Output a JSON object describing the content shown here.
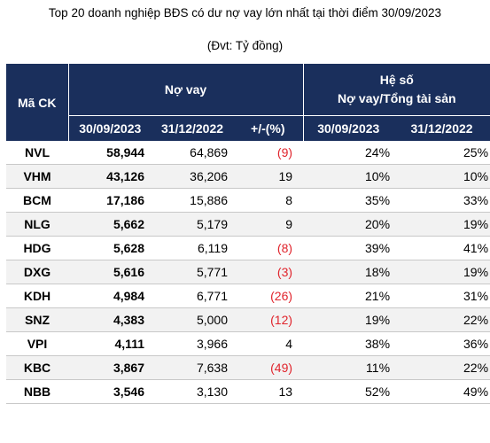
{
  "title": "Top 20 doanh nghiệp BĐS có dư nợ vay lớn nhất tại thời điểm 30/09/2023",
  "unit": "(Đvt: Tỷ đồng)",
  "table": {
    "header": {
      "code": "Mã CK",
      "loans": "Nợ vay",
      "ratio_line1": "Hệ số",
      "ratio_line2": "Nợ vay/Tổng tài sản",
      "loans_date1": "30/09/2023",
      "loans_date2": "31/12/2022",
      "change": "+/-(%)",
      "ratio_date1": "30/09/2023",
      "ratio_date2": "31/12/2022"
    },
    "rows": [
      {
        "code": "NVL",
        "loan_2023": "58,944",
        "loan_2022": "64,869",
        "change": "(9)",
        "ratio_2023": "24%",
        "ratio_2022": "25%"
      },
      {
        "code": "VHM",
        "loan_2023": "43,126",
        "loan_2022": "36,206",
        "change": "19",
        "ratio_2023": "10%",
        "ratio_2022": "10%"
      },
      {
        "code": "BCM",
        "loan_2023": "17,186",
        "loan_2022": "15,886",
        "change": "8",
        "ratio_2023": "35%",
        "ratio_2022": "33%"
      },
      {
        "code": "NLG",
        "loan_2023": "5,662",
        "loan_2022": "5,179",
        "change": "9",
        "ratio_2023": "20%",
        "ratio_2022": "19%"
      },
      {
        "code": "HDG",
        "loan_2023": "5,628",
        "loan_2022": "6,119",
        "change": "(8)",
        "ratio_2023": "39%",
        "ratio_2022": "41%"
      },
      {
        "code": "DXG",
        "loan_2023": "5,616",
        "loan_2022": "5,771",
        "change": "(3)",
        "ratio_2023": "18%",
        "ratio_2022": "19%"
      },
      {
        "code": "KDH",
        "loan_2023": "4,984",
        "loan_2022": "6,771",
        "change": "(26)",
        "ratio_2023": "21%",
        "ratio_2022": "31%"
      },
      {
        "code": "SNZ",
        "loan_2023": "4,383",
        "loan_2022": "5,000",
        "change": "(12)",
        "ratio_2023": "19%",
        "ratio_2022": "22%"
      },
      {
        "code": "VPI",
        "loan_2023": "4,111",
        "loan_2022": "3,966",
        "change": "4",
        "ratio_2023": "38%",
        "ratio_2022": "36%"
      },
      {
        "code": "KBC",
        "loan_2023": "3,867",
        "loan_2022": "7,638",
        "change": "(49)",
        "ratio_2023": "11%",
        "ratio_2022": "22%"
      },
      {
        "code": "NBB",
        "loan_2023": "3,546",
        "loan_2022": "3,130",
        "change": "13",
        "ratio_2023": "52%",
        "ratio_2022": "49%"
      }
    ]
  },
  "colors": {
    "header_bg": "#1a2f5c",
    "negative": "#e0242c"
  }
}
